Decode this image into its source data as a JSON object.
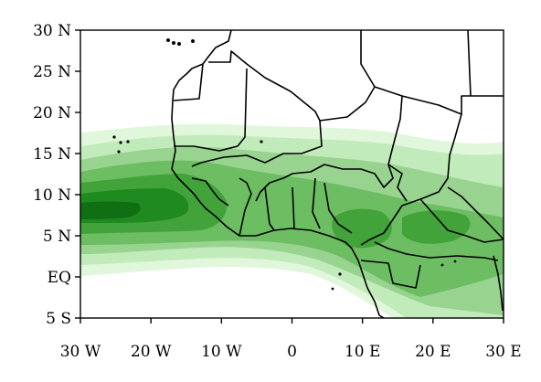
{
  "map": {
    "lat_labels": [
      "30 N",
      "25 N",
      "20 N",
      "15 N",
      "10 N",
      "5 N",
      "EQ",
      "5 S"
    ],
    "lon_labels": [
      "30 W",
      "20 W",
      "10 W",
      "0",
      "10 E",
      "20 E",
      "30 E"
    ],
    "lat_range": [
      -5,
      30
    ],
    "lon_range": [
      -30,
      30
    ],
    "colors": {
      "level_1": "#e0f7dc",
      "level_2": "#c2ebbb",
      "level_3": "#98d48f",
      "level_4": "#6dbd63",
      "level_5": "#42a33a",
      "level_6": "#1f8a1f",
      "level_7": "#0f6f12",
      "coastline": "#000000"
    }
  }
}
